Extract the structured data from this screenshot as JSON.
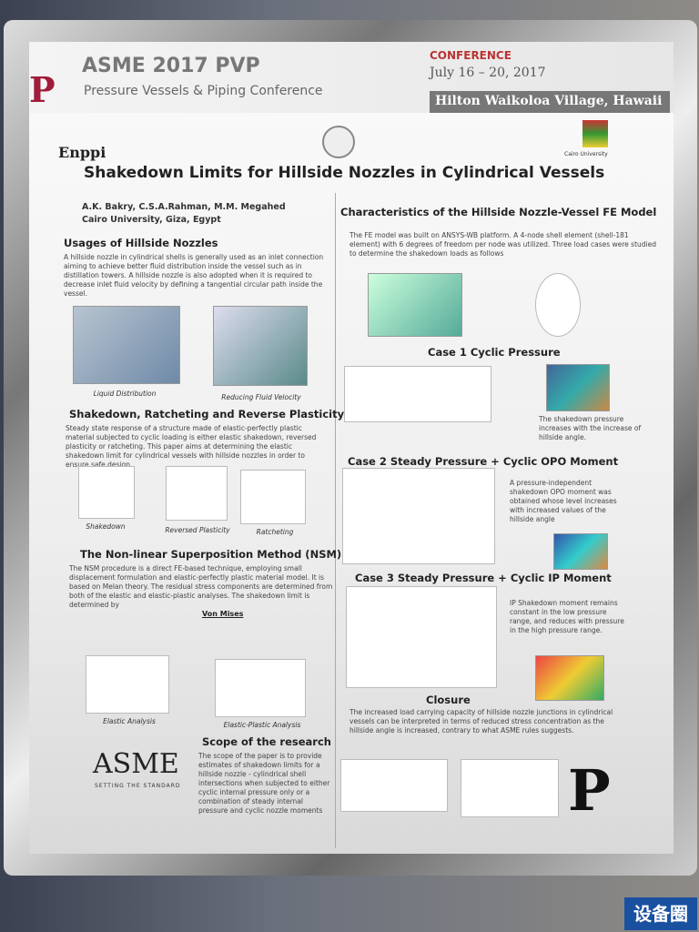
{
  "header": {
    "event": "ASME 2017 PVP",
    "conference": "Pressure Vessels & Piping Conference",
    "conference_word": "CONFERENCE",
    "dates": "July 16 – 20, 2017",
    "venue": "Hilton Waikoloa Village, Hawaii",
    "sponsor": "Enppi",
    "university": "Cairo University"
  },
  "title": "Shakedown Limits for Hillside Nozzles in Cylindrical Vessels",
  "authors": "A.K. Bakry, C.S.A.Rahman, M.M. Megahed",
  "affiliation": "Cairo University, Giza, Egypt",
  "left": {
    "usages": {
      "heading": "Usages of Hillside Nozzles",
      "body": "A hillside nozzle in cylindrical shells is generally used as an inlet connection aiming to achieve better fluid distribution inside the vessel such as in distillation towers. A hillside nozzle is also adopted when it is required to decrease inlet fluid velocity by defining a tangential circular path inside the vessel.",
      "captions": [
        "Liquid Distribution",
        "Reducing Fluid Velocity"
      ]
    },
    "shakedown": {
      "heading": "Shakedown, Ratcheting and Reverse Plasticity",
      "body": "Steady state response of a structure made of elastic-perfectly plastic material subjected to cyclic loading is either elastic shakedown, reversed plasticity or ratcheting. This paper aims at determining the elastic shakedown limit for cylindrical vessels with hillside nozzles in order to ensure safe design.",
      "captions": [
        "Shakedown",
        "Reversed Plasticity",
        "Ratcheting"
      ]
    },
    "nsm": {
      "heading": "The Non-linear Superposition Method (NSM)",
      "body": "The NSM procedure is a direct FE-based technique, employing small displacement formulation and elastic-perfectly plastic material model. It is based on Melan theory. The residual stress components are determined from both of the elastic and elastic-plastic analyses. The shakedown limit is determined by",
      "criterion": "Von Mises",
      "captions": [
        "Elastic Analysis",
        "Elastic-Plastic Analysis"
      ]
    },
    "scope": {
      "heading": "Scope of the research",
      "body": "The scope of the paper is to provide estimates of shakedown limits for a hillside nozzle - cylindrical shell intersections when subjected to either cyclic internal pressure only or a combination of steady internal pressure and cyclic nozzle moments"
    },
    "asme": {
      "logo": "ASME",
      "tagline": "SETTING THE STANDARD"
    }
  },
  "right": {
    "model": {
      "heading": "Characteristics of the Hillside Nozzle-Vessel FE Model",
      "body": "The FE model was built on ANSYS-WB platform. A 4-node shell element (shell-181 element) with 6 degrees of freedom per node was utilized. Three load cases were studied to determine the shakedown loads as follows"
    },
    "case1": {
      "heading": "Case 1 Cyclic Pressure",
      "caption": "The shakedown pressure increases with the increase of hillside angle."
    },
    "case2": {
      "heading": "Case 2 Steady Pressure + Cyclic OPO Moment",
      "caption": "A pressure-independent shakedown OPO moment was obtained whose level increases with increased values of the hillside angle"
    },
    "case3": {
      "heading": "Case 3   Steady Pressure + Cyclic IP Moment",
      "caption": "IP Shakedown moment remains constant in the low pressure range, and reduces with pressure in the high pressure range."
    },
    "closure": {
      "heading": "Closure",
      "body": "The increased load carrying capacity of hillside nozzle junctions in cylindrical vessels can be interpreted in terms of reduced stress concentration as the hillside angle is increased, contrary to what ASME rules suggests."
    }
  },
  "watermark": "设备圈"
}
